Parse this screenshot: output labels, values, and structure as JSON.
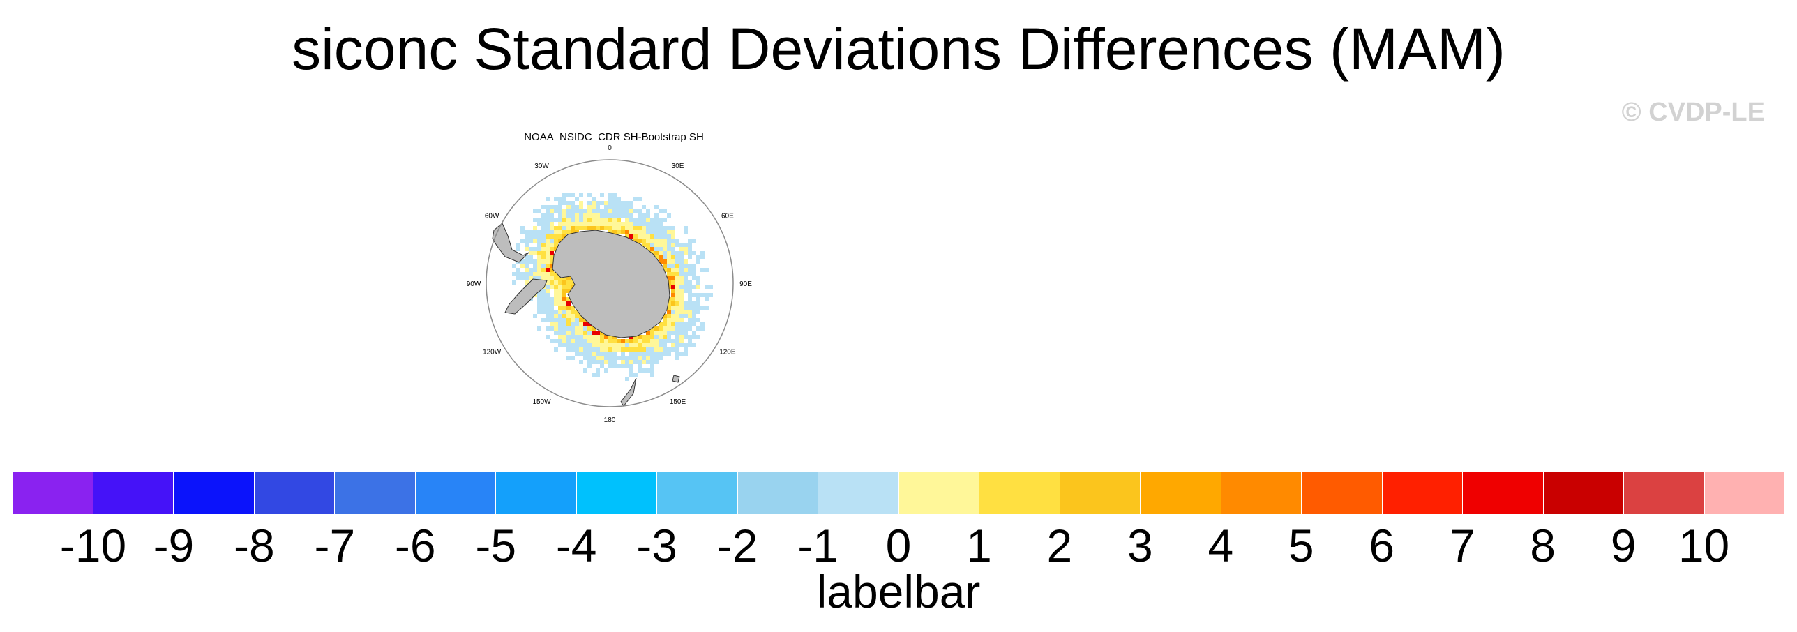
{
  "title": "siconc Standard Deviations Differences (MAM)",
  "watermark": "© CVDP-LE",
  "map": {
    "title": "NOAA_NSIDC_CDR SH-Bootstrap SH",
    "projection": "south-polar-stereographic",
    "longitude_labels": [
      "0",
      "30E",
      "60E",
      "90E",
      "120E",
      "150E",
      "180",
      "150W",
      "120W",
      "90W",
      "60W",
      "30W"
    ],
    "land_color": "#bdbdbd",
    "dominant_fill_colors": [
      "#b9e1f5",
      "#fff799",
      "#ffe041",
      "#fbc51d",
      "#ff8a00",
      "#e80000"
    ]
  },
  "labelbar": {
    "title": "labelbar",
    "ticks": [
      "-10",
      "-9",
      "-8",
      "-7",
      "-6",
      "-5",
      "-4",
      "-3",
      "-2",
      "-1",
      "0",
      "1",
      "2",
      "3",
      "4",
      "5",
      "6",
      "7",
      "8",
      "9",
      "10"
    ],
    "colors": [
      "#8a22f0",
      "#4512f8",
      "#0b13fb",
      "#3248e3",
      "#3c72e6",
      "#2884f7",
      "#14a0fb",
      "#00c1fd",
      "#56c4f4",
      "#99d3ef",
      "#b9e1f5",
      "#fff799",
      "#ffe041",
      "#fbc51d",
      "#ffa800",
      "#ff8a00",
      "#ff5b00",
      "#ff2000",
      "#ef0000",
      "#c90000",
      "#db4141",
      "#ffb1b1"
    ]
  }
}
